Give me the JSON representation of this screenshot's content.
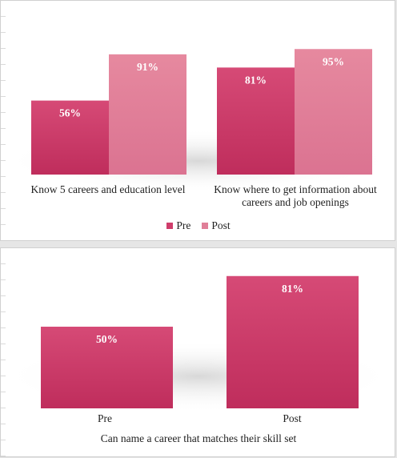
{
  "colors": {
    "pre": "#cf3d6b",
    "post": "#e07f98",
    "pre_dark": "#b92a59",
    "post_dark": "#d76a88"
  },
  "chart_data": [
    {
      "type": "bar",
      "categories": [
        "Know 5 careers and education level",
        "Know where to get information about careers and job openings"
      ],
      "series": [
        {
          "name": "Pre",
          "values": [
            56,
            81
          ],
          "labels": [
            "56%",
            "81%"
          ]
        },
        {
          "name": "Post",
          "values": [
            91,
            95
          ],
          "labels": [
            "91%",
            "95%"
          ]
        }
      ],
      "legend": [
        "Pre",
        "Post"
      ],
      "legend_position": "bottom",
      "ylim": [
        0,
        100
      ],
      "grid": false
    },
    {
      "type": "bar",
      "categories": [
        "Pre",
        "Post"
      ],
      "values": [
        50,
        81
      ],
      "labels": [
        "50%",
        "81%"
      ],
      "xlabel": "Can name a career that matches their skill set",
      "ylim": [
        0,
        100
      ],
      "grid": false
    }
  ]
}
